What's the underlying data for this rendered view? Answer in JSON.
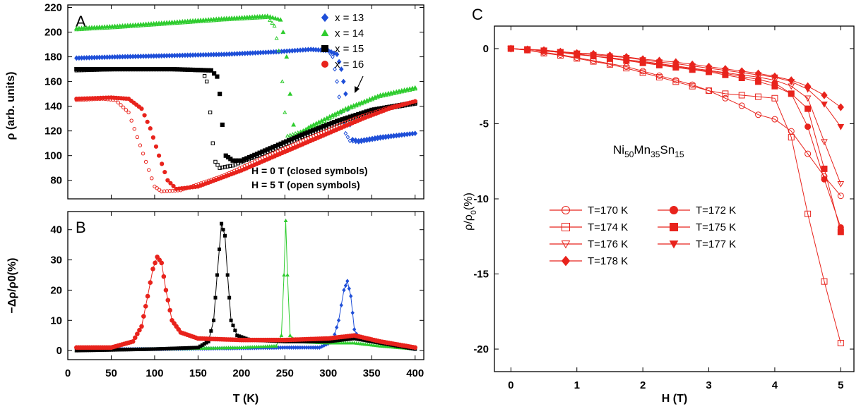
{
  "chart_data": [
    {
      "panel_label": "A",
      "type": "scatter",
      "title": "",
      "xlabel": "",
      "ylabel": "ρ (arb. units)",
      "xlim": [
        0,
        410
      ],
      "ylim": [
        65,
        222
      ],
      "xticks": [
        0,
        50,
        100,
        150,
        200,
        250,
        300,
        350,
        400
      ],
      "yticks": [
        80,
        100,
        120,
        140,
        160,
        180,
        200,
        220
      ],
      "legend_placement": "top-right",
      "annotations": [
        "H = 0 T  (closed symbols)",
        "H = 5 T  (open symbols)"
      ],
      "series": [
        {
          "name": "x = 13",
          "color": "#1f4fd8",
          "marker": "diamond",
          "closed": [
            [
              10,
              179
            ],
            [
              60,
              180
            ],
            [
              120,
              181
            ],
            [
              180,
              182
            ],
            [
              240,
              184
            ],
            [
              280,
              186
            ],
            [
              300,
              185
            ],
            [
              310,
              182
            ],
            [
              315,
              170
            ],
            [
              320,
              150
            ],
            [
              325,
              125
            ],
            [
              328,
              113
            ],
            [
              335,
              112
            ],
            [
              360,
              115
            ],
            [
              400,
              118
            ]
          ],
          "open": [
            [
              300,
              185
            ],
            [
              305,
              180
            ],
            [
              310,
              160
            ],
            [
              315,
              135
            ],
            [
              320,
              118
            ],
            [
              325,
              112
            ],
            [
              335,
              111
            ],
            [
              360,
              114
            ],
            [
              400,
              118
            ]
          ]
        },
        {
          "name": "x = 14",
          "color": "#2ecc2e",
          "marker": "triangle-up",
          "closed": [
            [
              10,
              203
            ],
            [
              60,
              205
            ],
            [
              120,
              208
            ],
            [
              180,
              211
            ],
            [
              230,
              213
            ],
            [
              245,
              210
            ],
            [
              248,
              200
            ],
            [
              252,
              180
            ],
            [
              256,
              150
            ],
            [
              260,
              125
            ],
            [
              263,
              116
            ],
            [
              280,
              124
            ],
            [
              320,
              138
            ],
            [
              360,
              149
            ],
            [
              400,
              155
            ]
          ],
          "open": [
            [
              10,
              202
            ],
            [
              60,
              204
            ],
            [
              120,
              207
            ],
            [
              180,
              210
            ],
            [
              230,
              212
            ],
            [
              238,
              205
            ],
            [
              243,
              185
            ],
            [
              247,
              160
            ],
            [
              250,
              135
            ],
            [
              253,
              116
            ],
            [
              280,
              122
            ],
            [
              320,
              137
            ],
            [
              360,
              148
            ],
            [
              400,
              154
            ]
          ]
        },
        {
          "name": "x = 15",
          "color": "#000000",
          "marker": "square",
          "closed": [
            [
              10,
              170
            ],
            [
              60,
              170
            ],
            [
              120,
              170
            ],
            [
              165,
              169
            ],
            [
              172,
              164
            ],
            [
              175,
              150
            ],
            [
              178,
              125
            ],
            [
              182,
              100
            ],
            [
              190,
              96
            ],
            [
              200,
              96
            ],
            [
              230,
              105
            ],
            [
              270,
              117
            ],
            [
              310,
              128
            ],
            [
              350,
              137
            ],
            [
              400,
              143
            ]
          ],
          "open": [
            [
              10,
              169
            ],
            [
              60,
              170
            ],
            [
              120,
              170
            ],
            [
              155,
              169
            ],
            [
              160,
              160
            ],
            [
              164,
              135
            ],
            [
              167,
              110
            ],
            [
              170,
              95
            ],
            [
              175,
              90
            ],
            [
              190,
              92
            ],
            [
              230,
              103
            ],
            [
              270,
              115
            ],
            [
              310,
              126
            ],
            [
              350,
              136
            ],
            [
              400,
              142
            ]
          ]
        },
        {
          "name": "x = 16",
          "color": "#e8231c",
          "marker": "circle",
          "closed": [
            [
              10,
              146
            ],
            [
              50,
              147
            ],
            [
              70,
              146
            ],
            [
              85,
              138
            ],
            [
              95,
              122
            ],
            [
              105,
              100
            ],
            [
              115,
              80
            ],
            [
              125,
              73
            ],
            [
              150,
              75
            ],
            [
              200,
              88
            ],
            [
              250,
              103
            ],
            [
              300,
              118
            ],
            [
              340,
              130
            ],
            [
              370,
              138
            ],
            [
              400,
              144
            ]
          ],
          "open": [
            [
              10,
              145
            ],
            [
              40,
              146
            ],
            [
              55,
              145
            ],
            [
              70,
              135
            ],
            [
              80,
              115
            ],
            [
              90,
              95
            ],
            [
              100,
              75
            ],
            [
              108,
              71
            ],
            [
              130,
              72
            ],
            [
              180,
              84
            ],
            [
              230,
              100
            ],
            [
              280,
              115
            ],
            [
              330,
              130
            ],
            [
              370,
              139
            ],
            [
              400,
              144
            ]
          ]
        }
      ]
    },
    {
      "panel_label": "B",
      "type": "line",
      "title": "",
      "xlabel": "T (K)",
      "ylabel": "−Δρ/ρ0(%)",
      "xlim": [
        0,
        410
      ],
      "ylim": [
        -3,
        46
      ],
      "xticks": [
        0,
        50,
        100,
        150,
        200,
        250,
        300,
        350,
        400
      ],
      "yticks": [
        0,
        10,
        20,
        30,
        40
      ],
      "series": [
        {
          "name": "x = 13",
          "color": "#1f4fd8",
          "marker": "diamond",
          "points": [
            [
              10,
              0.5
            ],
            [
              100,
              0.5
            ],
            [
              200,
              0.8
            ],
            [
              250,
              1
            ],
            [
              290,
              1
            ],
            [
              305,
              3
            ],
            [
              312,
              10
            ],
            [
              318,
              20
            ],
            [
              322,
              23
            ],
            [
              326,
              18
            ],
            [
              330,
              7
            ],
            [
              335,
              4
            ],
            [
              350,
              3
            ],
            [
              380,
              1.5
            ],
            [
              400,
              0.5
            ]
          ]
        },
        {
          "name": "x = 14",
          "color": "#2ecc2e",
          "marker": "triangle-up",
          "points": [
            [
              10,
              0
            ],
            [
              100,
              0.5
            ],
            [
              200,
              1
            ],
            [
              240,
              1.5
            ],
            [
              246,
              5
            ],
            [
              249,
              25
            ],
            [
              251,
              43
            ],
            [
              253,
              25
            ],
            [
              256,
              5
            ],
            [
              262,
              3
            ],
            [
              300,
              2.5
            ],
            [
              330,
              2.5
            ],
            [
              360,
              1.5
            ],
            [
              400,
              0.5
            ]
          ]
        },
        {
          "name": "x = 15",
          "color": "#000000",
          "marker": "square",
          "points": [
            [
              10,
              0
            ],
            [
              100,
              0.5
            ],
            [
              150,
              1
            ],
            [
              162,
              3
            ],
            [
              168,
              10
            ],
            [
              172,
              25
            ],
            [
              177,
              42
            ],
            [
              181,
              38
            ],
            [
              184,
              25
            ],
            [
              188,
              10
            ],
            [
              195,
              5
            ],
            [
              210,
              3.5
            ],
            [
              250,
              3
            ],
            [
              300,
              3
            ],
            [
              330,
              4
            ],
            [
              360,
              2.5
            ],
            [
              400,
              0.5
            ]
          ]
        },
        {
          "name": "x = 16",
          "color": "#e8231c",
          "marker": "circle",
          "points": [
            [
              10,
              1
            ],
            [
              50,
              1
            ],
            [
              75,
              3
            ],
            [
              85,
              8
            ],
            [
              92,
              18
            ],
            [
              98,
              27
            ],
            [
              103,
              31
            ],
            [
              108,
              29
            ],
            [
              113,
              20
            ],
            [
              120,
              10
            ],
            [
              130,
              6
            ],
            [
              150,
              4
            ],
            [
              200,
              3.5
            ],
            [
              250,
              3.5
            ],
            [
              300,
              4
            ],
            [
              330,
              5
            ],
            [
              360,
              3
            ],
            [
              400,
              1
            ]
          ]
        }
      ]
    },
    {
      "panel_label": "C",
      "type": "line",
      "title": "",
      "xlabel": "H (T)",
      "ylabel": "ρ/ρ0(%)",
      "annotation": "Ni50Mn35Sn15",
      "xlim": [
        -0.25,
        5.2
      ],
      "ylim": [
        -21.5,
        1.5
      ],
      "xticks": [
        0,
        1,
        2,
        3,
        4,
        5
      ],
      "yticks": [
        0,
        -5,
        -10,
        -15,
        -20
      ],
      "legend_placement": "center-left",
      "color": "#e8231c",
      "x": [
        0,
        0.25,
        0.5,
        0.75,
        1.0,
        1.25,
        1.5,
        1.75,
        2.0,
        2.25,
        2.5,
        2.75,
        3.0,
        3.25,
        3.5,
        3.75,
        4.0,
        4.25,
        4.5,
        4.75,
        5.0
      ],
      "series": [
        {
          "name": "T=170 K",
          "marker": "circle-open",
          "values": [
            0,
            -0.1,
            -0.25,
            -0.4,
            -0.6,
            -0.8,
            -1.0,
            -1.2,
            -1.5,
            -1.8,
            -2.1,
            -2.4,
            -2.8,
            -3.3,
            -3.8,
            -4.4,
            -4.7,
            -5.5,
            -7.0,
            -8.5,
            -9.8
          ]
        },
        {
          "name": "T=172 K",
          "marker": "circle-filled",
          "values": [
            0,
            -0.05,
            -0.15,
            -0.25,
            -0.35,
            -0.5,
            -0.6,
            -0.75,
            -0.9,
            -1.05,
            -1.2,
            -1.35,
            -1.5,
            -1.65,
            -1.85,
            -2.05,
            -2.3,
            -3.0,
            -5.2,
            -8.7,
            -11.9
          ]
        },
        {
          "name": "T=174 K",
          "marker": "square-open",
          "values": [
            0,
            -0.1,
            -0.3,
            -0.45,
            -0.65,
            -0.85,
            -1.05,
            -1.3,
            -1.6,
            -1.9,
            -2.2,
            -2.5,
            -2.8,
            -3.0,
            -3.1,
            -3.2,
            -3.3,
            -5.9,
            -11.0,
            -15.5,
            -19.6
          ]
        },
        {
          "name": "T=175 K",
          "marker": "square-filled",
          "values": [
            0,
            -0.05,
            -0.15,
            -0.25,
            -0.4,
            -0.5,
            -0.65,
            -0.8,
            -0.95,
            -1.1,
            -1.25,
            -1.4,
            -1.55,
            -1.75,
            -1.95,
            -2.2,
            -2.5,
            -3.0,
            -4.0,
            -8.0,
            -12.2
          ]
        },
        {
          "name": "T=176 K",
          "marker": "triangle-down-open",
          "values": [
            0,
            -0.05,
            -0.15,
            -0.25,
            -0.35,
            -0.5,
            -0.6,
            -0.75,
            -0.85,
            -1.0,
            -1.15,
            -1.3,
            -1.45,
            -1.6,
            -1.75,
            -1.9,
            -2.1,
            -2.5,
            -3.3,
            -6.2,
            -9.0
          ]
        },
        {
          "name": "T=177 K",
          "marker": "triangle-down-filled",
          "values": [
            0,
            -0.05,
            -0.1,
            -0.2,
            -0.3,
            -0.4,
            -0.5,
            -0.6,
            -0.75,
            -0.9,
            -1.0,
            -1.15,
            -1.3,
            -1.45,
            -1.6,
            -1.75,
            -1.9,
            -2.2,
            -2.7,
            -3.7,
            -5.2
          ]
        },
        {
          "name": "T=178 K",
          "marker": "diamond-filled",
          "values": [
            0,
            -0.05,
            -0.1,
            -0.2,
            -0.3,
            -0.35,
            -0.45,
            -0.55,
            -0.7,
            -0.8,
            -0.9,
            -1.05,
            -1.2,
            -1.35,
            -1.5,
            -1.65,
            -1.85,
            -2.1,
            -2.5,
            -3.1,
            -3.9
          ]
        }
      ]
    }
  ]
}
